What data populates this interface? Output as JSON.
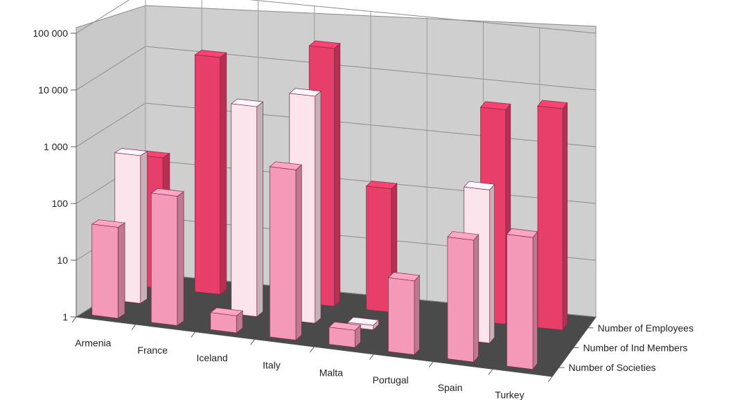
{
  "chart_data": {
    "type": "bar",
    "style": "3d-grouped-depth",
    "y_scale": "log",
    "ylim": [
      1,
      100000
    ],
    "y_ticks": [
      1,
      10,
      100,
      1000,
      10000,
      100000
    ],
    "y_tick_labels": [
      "1",
      "10",
      "100",
      "1 000",
      "10 000",
      "100 000"
    ],
    "categories": [
      "Armenia",
      "France",
      "Iceland",
      "Italy",
      "Malta",
      "Portugal",
      "Spain",
      "Turkey"
    ],
    "series": [
      {
        "name": "Number of Societies",
        "color": "#f49ab8",
        "values": [
          40,
          190,
          2,
          1000,
          2,
          20,
          140,
          210
        ]
      },
      {
        "name": "Number of Ind Members",
        "color": "#fce4ec",
        "values": [
          400,
          null,
          5000,
          10000,
          1.2,
          null,
          500,
          null
        ]
      },
      {
        "name": "Number of Employees",
        "color": "#e83e6a",
        "values": [
          200,
          15000,
          null,
          35000,
          150,
          null,
          6000,
          8000
        ]
      }
    ],
    "grid": true,
    "legend_position": "depth-axis-right"
  }
}
